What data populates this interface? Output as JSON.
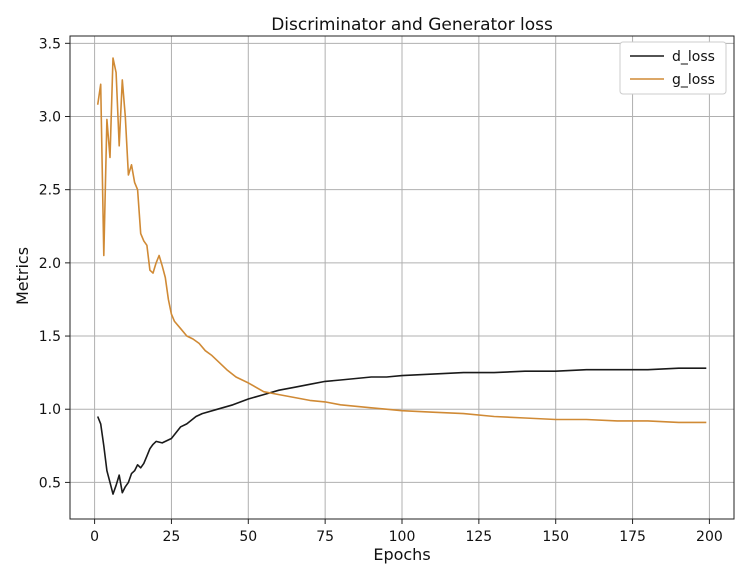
{
  "chart_data": {
    "type": "line",
    "title": "Discriminator and Generator loss",
    "xlabel": "Epochs",
    "ylabel": "Metrics",
    "xlim": [
      -8,
      208
    ],
    "ylim": [
      0.25,
      3.55
    ],
    "xticks": [
      0,
      25,
      50,
      75,
      100,
      125,
      150,
      175,
      200
    ],
    "yticks": [
      0.5,
      1.0,
      1.5,
      2.0,
      2.5,
      3.0,
      3.5
    ],
    "grid": true,
    "legend_position": "top-right",
    "series": [
      {
        "name": "d_loss",
        "color": "#1a1a1a",
        "x": [
          1,
          2,
          3,
          4,
          5,
          6,
          7,
          8,
          9,
          10,
          11,
          12,
          13,
          14,
          15,
          16,
          17,
          18,
          19,
          20,
          22,
          25,
          28,
          30,
          33,
          35,
          40,
          45,
          50,
          55,
          60,
          65,
          70,
          75,
          80,
          85,
          90,
          95,
          100,
          110,
          120,
          130,
          140,
          150,
          160,
          170,
          180,
          190,
          199
        ],
        "y": [
          0.95,
          0.9,
          0.75,
          0.58,
          0.5,
          0.42,
          0.48,
          0.55,
          0.43,
          0.47,
          0.5,
          0.56,
          0.58,
          0.62,
          0.6,
          0.63,
          0.68,
          0.73,
          0.76,
          0.78,
          0.77,
          0.8,
          0.88,
          0.9,
          0.95,
          0.97,
          1.0,
          1.03,
          1.07,
          1.1,
          1.13,
          1.15,
          1.17,
          1.19,
          1.2,
          1.21,
          1.22,
          1.22,
          1.23,
          1.24,
          1.25,
          1.25,
          1.26,
          1.26,
          1.27,
          1.27,
          1.27,
          1.28,
          1.28
        ]
      },
      {
        "name": "g_loss",
        "color": "#d08a35",
        "x": [
          1,
          2,
          3,
          4,
          5,
          6,
          7,
          8,
          9,
          10,
          11,
          12,
          13,
          14,
          15,
          16,
          17,
          18,
          19,
          20,
          21,
          22,
          23,
          24,
          25,
          26,
          28,
          30,
          32,
          34,
          36,
          38,
          40,
          43,
          46,
          50,
          55,
          60,
          65,
          70,
          75,
          80,
          85,
          90,
          100,
          110,
          120,
          130,
          140,
          150,
          160,
          170,
          180,
          190,
          199
        ],
        "y": [
          3.08,
          3.22,
          2.05,
          2.98,
          2.72,
          3.4,
          3.3,
          2.8,
          3.25,
          3.0,
          2.6,
          2.67,
          2.55,
          2.5,
          2.2,
          2.15,
          2.12,
          1.95,
          1.93,
          2.0,
          2.05,
          1.98,
          1.9,
          1.75,
          1.65,
          1.6,
          1.55,
          1.5,
          1.48,
          1.45,
          1.4,
          1.37,
          1.33,
          1.27,
          1.22,
          1.18,
          1.12,
          1.1,
          1.08,
          1.06,
          1.05,
          1.03,
          1.02,
          1.01,
          0.99,
          0.98,
          0.97,
          0.95,
          0.94,
          0.93,
          0.93,
          0.92,
          0.92,
          0.91,
          0.91
        ]
      }
    ]
  }
}
